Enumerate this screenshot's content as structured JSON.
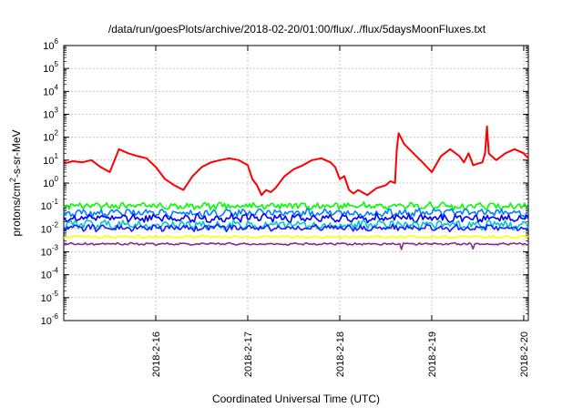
{
  "chart_data": {
    "type": "line",
    "title": "/data/run/goesPlots/archive/2018-02-20/01:00/flux/../flux/5daysMoonFluxes.txt",
    "xlabel": "Coordinated Universal Time (UTC)",
    "ylabel": {
      "base": "protons/cm",
      "sup": "2",
      "rest": "-s-sr-MeV"
    },
    "yscale": "log",
    "ylim": [
      1e-06,
      1000000.0
    ],
    "xlim": [
      15.0,
      20.05
    ],
    "grid": true,
    "legend": "none",
    "y_ticks": [
      {
        "value": 1e-06,
        "exp": "-6"
      },
      {
        "value": 1e-05,
        "exp": "-5"
      },
      {
        "value": 0.0001,
        "exp": "-4"
      },
      {
        "value": 0.001,
        "exp": "-3"
      },
      {
        "value": 0.01,
        "exp": "-2"
      },
      {
        "value": 0.1,
        "exp": "-1"
      },
      {
        "value": 1,
        "exp": "0"
      },
      {
        "value": 10,
        "exp": "1"
      },
      {
        "value": 100,
        "exp": "2"
      },
      {
        "value": 1000,
        "exp": "3"
      },
      {
        "value": 10000,
        "exp": "4"
      },
      {
        "value": 100000,
        "exp": "5"
      },
      {
        "value": 1000000,
        "exp": "6"
      }
    ],
    "x_ticks": [
      {
        "value": 16,
        "label": "2018-2-16"
      },
      {
        "value": 17,
        "label": "2018-2-17"
      },
      {
        "value": 18,
        "label": "2018-2-18"
      },
      {
        "value": 19,
        "label": "2018-2-19"
      },
      {
        "value": 20,
        "label": "2018-2-20"
      }
    ],
    "series": [
      {
        "color": "#ff0000",
        "kind": "smooth",
        "width": 2,
        "x": [
          15.0,
          15.1,
          15.2,
          15.3,
          15.4,
          15.5,
          15.6,
          15.7,
          15.8,
          15.9,
          16.0,
          16.1,
          16.2,
          16.3,
          16.4,
          16.5,
          16.6,
          16.7,
          16.8,
          16.9,
          17.0,
          17.05,
          17.1,
          17.15,
          17.2,
          17.25,
          17.3,
          17.4,
          17.5,
          17.6,
          17.7,
          17.8,
          17.9,
          17.95,
          18.0,
          18.05,
          18.1,
          18.15,
          18.2,
          18.3,
          18.4,
          18.5,
          18.55,
          18.6,
          18.62,
          18.64,
          18.7,
          18.8,
          18.9,
          19.0,
          19.1,
          19.2,
          19.3,
          19.35,
          19.4,
          19.45,
          19.5,
          19.55,
          19.58,
          19.6,
          19.62,
          19.65,
          19.7,
          19.8,
          19.9,
          20.0,
          20.05
        ],
        "y": [
          7,
          9,
          8,
          10,
          5,
          3,
          30,
          20,
          15,
          12,
          5,
          1.5,
          0.8,
          0.5,
          2,
          5,
          8,
          10,
          12,
          10,
          6,
          1.5,
          0.8,
          0.3,
          0.5,
          0.4,
          0.6,
          2,
          4,
          6,
          10,
          12,
          8,
          5,
          1.5,
          2,
          0.5,
          0.35,
          0.5,
          0.3,
          0.6,
          0.8,
          1.2,
          1,
          30,
          150,
          50,
          20,
          8,
          3,
          15,
          30,
          15,
          8,
          20,
          6,
          7,
          8,
          20,
          300,
          20,
          15,
          10,
          20,
          30,
          20,
          12
        ]
      },
      {
        "color": "#00ff00",
        "kind": "noisy",
        "base": 0.1,
        "amp": 0.13,
        "seed": 3
      },
      {
        "color": "#0080ff",
        "kind": "noisy",
        "base": 0.05,
        "amp": 0.14,
        "seed": 7
      },
      {
        "color": "#0000ff",
        "kind": "noisy",
        "base": 0.03,
        "amp": 0.15,
        "seed": 11
      },
      {
        "color": "#00c8c8",
        "kind": "noisy",
        "base": 0.015,
        "amp": 0.16,
        "seed": 17
      },
      {
        "color": "#1a1aff",
        "kind": "noisy",
        "base": 0.011,
        "amp": 0.12,
        "seed": 23
      },
      {
        "color": "#ffff00",
        "kind": "noisy",
        "base": 0.0045,
        "amp": 0.05,
        "seed": 29
      },
      {
        "color": "#8b2a8b",
        "kind": "noisy",
        "base": 0.0022,
        "amp": 0.04,
        "seed": 31,
        "dips": [
          18.67,
          19.45
        ]
      }
    ]
  }
}
